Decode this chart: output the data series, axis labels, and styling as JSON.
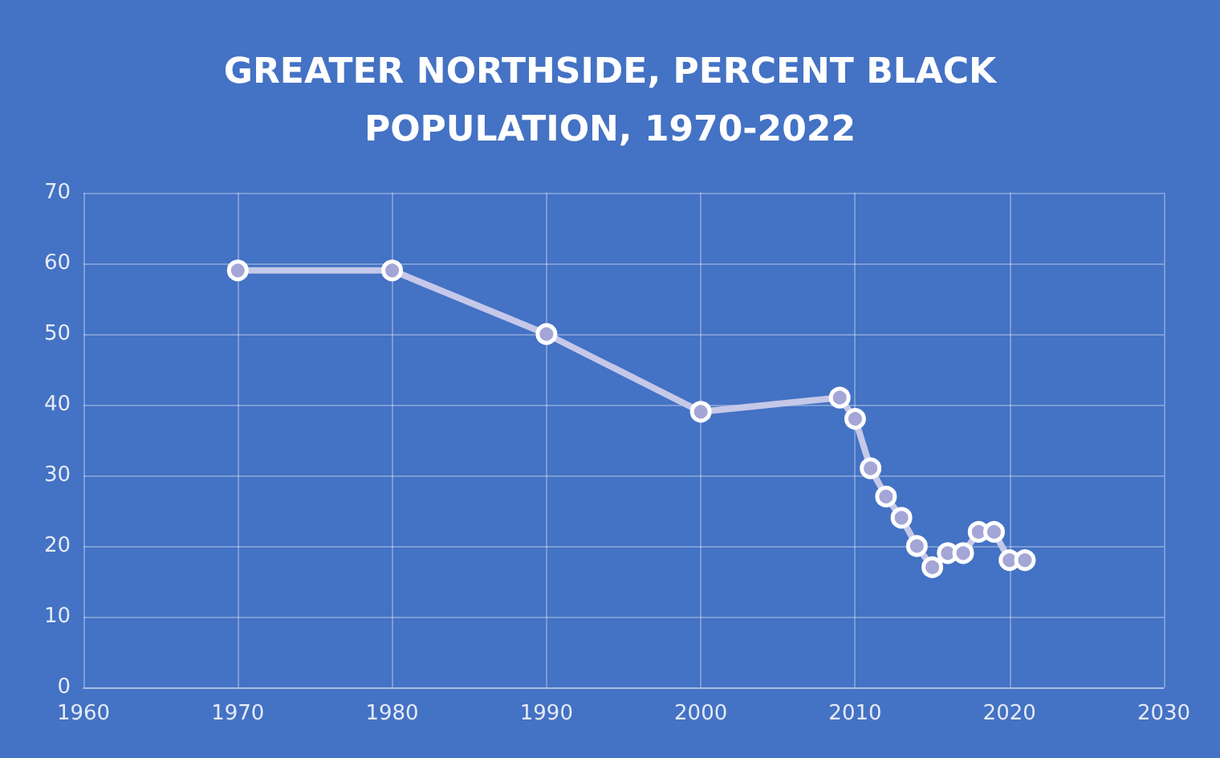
{
  "chart_data": {
    "type": "line",
    "title": "GREATER NORTHSIDE, PERCENT BLACK\nPOPULATION, 1970-2022",
    "x": [
      1970,
      1980,
      1990,
      2000,
      2009,
      2010,
      2011,
      2012,
      2013,
      2014,
      2015,
      2016,
      2017,
      2018,
      2019,
      2020,
      2021
    ],
    "series": [
      {
        "color": "#c5c8e8",
        "values": [
          59,
          59,
          50,
          39,
          41,
          38,
          31,
          27,
          24,
          20,
          17,
          19,
          19,
          22,
          22,
          18,
          18
        ]
      }
    ],
    "xlim": [
      1960,
      2030
    ],
    "xticks": [
      1960,
      1970,
      1980,
      1990,
      2000,
      2010,
      2020,
      2030
    ],
    "ylim": [
      0,
      70
    ],
    "yticks": [
      0,
      10,
      20,
      30,
      40,
      50,
      60,
      70
    ],
    "grid": true,
    "marker": "circle",
    "line_style": "solid"
  }
}
